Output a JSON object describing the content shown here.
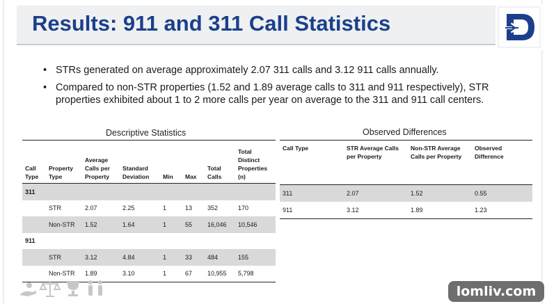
{
  "title": "Results: 911 and 311 Call Statistics",
  "brand_color": "#1b3f8b",
  "bullets": [
    "STRs generated on average approximately 2.07 311 calls and 3.12 911 calls annually.",
    "Compared to non-STR properties (1.52 and 1.89 average calls to 311 and 911 respectively), STR properties exhibited about 1 to 2 more calls per year on average to the 311 and 911 call centers."
  ],
  "descriptive": {
    "caption": "Descriptive Statistics",
    "headers": [
      "Call Type",
      "Property Type",
      "Average Calls per Property",
      "Standard Deviation",
      "Min",
      "Max",
      "Total Calls",
      "Total Distinct Properties (n)"
    ],
    "group_311": "311",
    "group_911": "911",
    "rows": [
      [
        "",
        "STR",
        "2.07",
        "2.25",
        "1",
        "13",
        "352",
        "170"
      ],
      [
        "",
        "Non-STR",
        "1.52",
        "1.64",
        "1",
        "55",
        "16,046",
        "10,546"
      ],
      [
        "",
        "STR",
        "3.12",
        "4.84",
        "1",
        "33",
        "484",
        "155"
      ],
      [
        "",
        "Non-STR",
        "1.89",
        "3.10",
        "1",
        "67",
        "10,955",
        "5,798"
      ]
    ]
  },
  "observed": {
    "caption": "Observed Differences",
    "headers": [
      "Call Type",
      "STR Average Calls per Property",
      "Non-STR Average Calls per Property",
      "Observed Difference"
    ],
    "rows": [
      [
        "311",
        "2.07",
        "1.52",
        "0.55"
      ],
      [
        "911",
        "3.12",
        "1.89",
        "1.23"
      ]
    ]
  },
  "logo_icon": "denver-d-logo-icon",
  "footer_icons": [
    "care-hands-icon",
    "scales-icon",
    "trophy-icon",
    "people-icon"
  ],
  "watermark": "lomliv.com"
}
